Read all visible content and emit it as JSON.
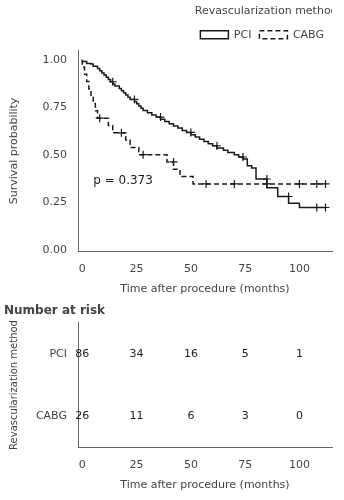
{
  "chart_data": [
    {
      "type": "step",
      "xlabel": "Time after procedure (months)",
      "ylabel": "Survival probability",
      "xlim": [
        -2,
        115
      ],
      "ylim": [
        -0.01,
        1.05
      ],
      "xticks": [
        0,
        25,
        50,
        75,
        100
      ],
      "yticks": [
        {
          "value": 0,
          "label": "0.00"
        },
        0.25,
        {
          "value": 0.5,
          "label": "0.50"
        },
        0.75,
        {
          "value": 1,
          "label": "1.00"
        }
      ],
      "legend": "upper right",
      "legend_title": "Revascularization method",
      "annotation": "p = 0.373",
      "grid": false,
      "series": [
        {
          "name": "PCI",
          "color": "#1a1a1a",
          "line_style": "solid",
          "marker": "+",
          "x": [
            0,
            2,
            4,
            5,
            7,
            8,
            9,
            10,
            11,
            12,
            13,
            14,
            15,
            17,
            18,
            19,
            20,
            21,
            22,
            24,
            25,
            26,
            27,
            28,
            30,
            32,
            34,
            36,
            38,
            40,
            42,
            44,
            46,
            48,
            50,
            52,
            54,
            56,
            58,
            60,
            62,
            65,
            67,
            70,
            72,
            74,
            76,
            78,
            80,
            85,
            90,
            95,
            100,
            108,
            112
          ],
          "values": [
            1.0,
            0.99,
            0.98,
            0.977,
            0.965,
            0.954,
            0.942,
            0.93,
            0.919,
            0.907,
            0.896,
            0.884,
            0.872,
            0.861,
            0.849,
            0.837,
            0.826,
            0.814,
            0.803,
            0.791,
            0.78,
            0.768,
            0.756,
            0.745,
            0.733,
            0.721,
            0.709,
            0.698,
            0.686,
            0.675,
            0.663,
            0.651,
            0.64,
            0.628,
            0.617,
            0.605,
            0.593,
            0.581,
            0.57,
            0.558,
            0.547,
            0.535,
            0.523,
            0.512,
            0.5,
            0.488,
            0.477,
            0.442,
            0.43,
            0.372,
            0.326,
            0.28,
            0.245,
            0.222,
            0.222
          ],
          "censor_x": [
            14,
            24,
            36,
            50,
            62,
            74,
            85,
            95,
            108,
            112
          ],
          "censor_y": [
            0.884,
            0.791,
            0.698,
            0.617,
            0.547,
            0.488,
            0.372,
            0.28,
            0.222,
            0.222
          ]
        },
        {
          "name": "CABG",
          "color": "#1a1a1a",
          "line_style": "dashed",
          "marker": "+",
          "x": [
            0,
            1,
            2,
            3,
            4,
            5,
            6,
            7,
            8,
            10,
            12,
            14,
            16,
            18,
            20,
            22,
            24,
            26,
            28,
            30,
            33,
            36,
            39,
            42,
            45,
            48,
            51,
            54,
            57,
            60,
            63,
            66,
            69,
            72,
            75,
            78,
            85,
            92,
            100,
            108,
            112
          ],
          "values": [
            1.0,
            0.962,
            0.923,
            0.885,
            0.846,
            0.808,
            0.769,
            0.731,
            0.692,
            0.692,
            0.692,
            0.654,
            0.615,
            0.615,
            0.615,
            0.577,
            0.538,
            0.538,
            0.5,
            0.5,
            0.5,
            0.5,
            0.5,
            0.462,
            0.423,
            0.385,
            0.385,
            0.346,
            0.346,
            0.346,
            0.346,
            0.346,
            0.346,
            0.346,
            0.346,
            0.346,
            0.346,
            0.346,
            0.346,
            0.346,
            0.346
          ],
          "censor_x": [
            8,
            18,
            28,
            42,
            57,
            70,
            85,
            100,
            108,
            112
          ],
          "censor_y": [
            0.692,
            0.615,
            0.5,
            0.462,
            0.346,
            0.346,
            0.346,
            0.346,
            0.346,
            0.346
          ]
        }
      ]
    },
    {
      "type": "table",
      "title": "Number at risk",
      "xlabel": "Time after procedure (months)",
      "ylabel": "Revascularization method",
      "xlim": [
        -2,
        115
      ],
      "xticks": [
        0,
        25,
        50,
        75,
        100
      ],
      "x": [
        0,
        25,
        50,
        75,
        100
      ],
      "data_labels": true,
      "grid": false,
      "series": [
        {
          "name": "PCI",
          "values": [
            86,
            34,
            16,
            5,
            1
          ]
        },
        {
          "name": "CABG",
          "values": [
            26,
            11,
            6,
            3,
            0
          ]
        }
      ]
    }
  ]
}
